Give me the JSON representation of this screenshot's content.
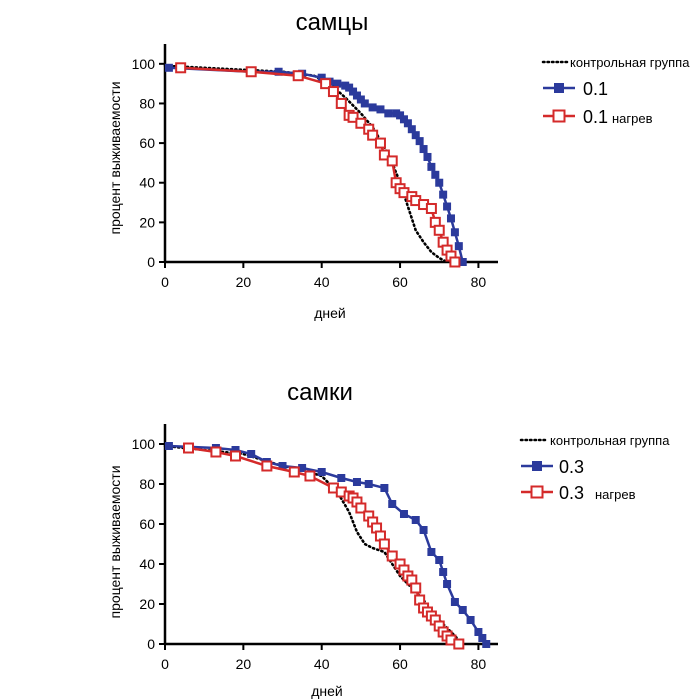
{
  "chart_data": [
    {
      "type": "line",
      "title": "самцы",
      "xlabel": "дней",
      "ylabel": "процент выживаемости",
      "xlim": [
        0,
        85
      ],
      "ylim": [
        0,
        110
      ],
      "xticks": [
        0,
        20,
        40,
        60,
        80
      ],
      "yticks": [
        0,
        20,
        40,
        60,
        80,
        100
      ],
      "legend_position": "top-right",
      "series": [
        {
          "name": "контрольная группа",
          "style": "dotted",
          "color": "#000000",
          "x": [
            0,
            10,
            20,
            30,
            38,
            42,
            46,
            50,
            53,
            56,
            58,
            60,
            62,
            64,
            66,
            68,
            70,
            72
          ],
          "y": [
            99,
            98,
            97,
            96,
            94,
            90,
            83,
            75,
            68,
            58,
            50,
            40,
            28,
            16,
            10,
            5,
            2,
            0
          ]
        },
        {
          "name": "0.1",
          "style": "solid-square",
          "color": "#2b3a9c",
          "x": [
            1,
            22,
            29,
            35,
            40,
            42,
            44,
            46,
            47,
            48,
            49,
            50,
            51,
            53,
            55,
            57,
            59,
            60,
            61,
            62,
            63,
            64,
            65,
            66,
            67,
            68,
            69,
            70,
            71,
            72,
            73,
            74,
            75,
            76
          ],
          "y": [
            98,
            96,
            96,
            95,
            93,
            91,
            90,
            89,
            88,
            86,
            84,
            82,
            80,
            78,
            77,
            75,
            75,
            74,
            72,
            70,
            67,
            64,
            61,
            57,
            53,
            48,
            44,
            40,
            34,
            28,
            22,
            15,
            8,
            0
          ]
        },
        {
          "name": "0.1",
          "annotation": "нагрев",
          "style": "open-square",
          "color": "#d42a2a",
          "x": [
            4,
            22,
            34,
            41,
            43,
            45,
            47,
            48,
            50,
            52,
            53,
            55,
            56,
            58,
            59,
            60,
            61,
            63,
            64,
            66,
            68,
            69,
            70,
            71,
            72,
            73,
            74
          ],
          "y": [
            98,
            96,
            94,
            90,
            86,
            80,
            74,
            73,
            70,
            67,
            64,
            60,
            54,
            51,
            40,
            37,
            35,
            33,
            31,
            29,
            27,
            20,
            16,
            10,
            6,
            3,
            0
          ]
        }
      ]
    },
    {
      "type": "line",
      "title": "самки",
      "xlabel": "дней",
      "ylabel": "процент выживаемости",
      "xlim": [
        0,
        85
      ],
      "ylim": [
        0,
        110
      ],
      "xticks": [
        0,
        20,
        40,
        60,
        80
      ],
      "yticks": [
        0,
        20,
        40,
        60,
        80,
        100
      ],
      "legend_position": "top-right",
      "series": [
        {
          "name": "контрольная группа",
          "style": "dotted",
          "color": "#000000",
          "x": [
            0,
            10,
            20,
            25,
            30,
            35,
            40,
            44,
            47,
            49,
            51,
            53,
            56,
            58,
            60,
            62,
            64,
            66,
            68,
            70,
            72,
            74,
            76
          ],
          "y": [
            99,
            97,
            95,
            92,
            89,
            87,
            84,
            76,
            66,
            56,
            50,
            48,
            46,
            40,
            34,
            30,
            26,
            22,
            16,
            12,
            8,
            4,
            0
          ]
        },
        {
          "name": "0.3",
          "style": "solid-square",
          "color": "#2b3a9c",
          "x": [
            1,
            13,
            18,
            22,
            26,
            30,
            35,
            40,
            45,
            49,
            52,
            56,
            58,
            61,
            64,
            66,
            68,
            70,
            71,
            72,
            74,
            76,
            78,
            80,
            81,
            82
          ],
          "y": [
            99,
            98,
            97,
            95,
            91,
            89,
            88,
            86,
            83,
            81,
            80,
            78,
            70,
            65,
            62,
            57,
            46,
            42,
            36,
            30,
            21,
            17,
            12,
            6,
            3,
            0
          ]
        },
        {
          "name": "0.3",
          "annotation": "нагрев",
          "style": "open-square",
          "color": "#d42a2a",
          "x": [
            6,
            13,
            18,
            26,
            33,
            37,
            43,
            45,
            47,
            48,
            49,
            50,
            52,
            53,
            54,
            55,
            56,
            58,
            60,
            61,
            62,
            63,
            64,
            65,
            66,
            67,
            68,
            69,
            70,
            71,
            72,
            73,
            75
          ],
          "y": [
            98,
            96,
            94,
            89,
            86,
            84,
            78,
            76,
            74,
            73,
            71,
            68,
            64,
            61,
            58,
            54,
            50,
            44,
            40,
            37,
            34,
            32,
            28,
            22,
            18,
            16,
            14,
            12,
            9,
            6,
            4,
            2,
            0
          ]
        }
      ]
    }
  ]
}
